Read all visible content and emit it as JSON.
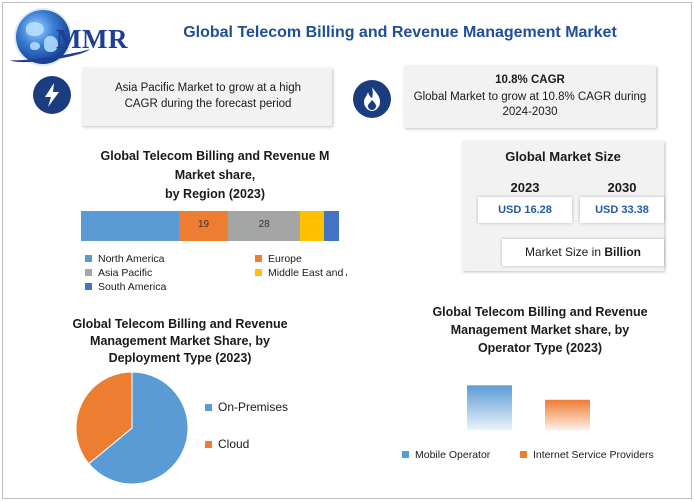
{
  "brand": {
    "logo_text": "MMR"
  },
  "title": "Global Telecom Billing and Revenue Management Market",
  "highlights": [
    {
      "icon": "lightning-icon",
      "heading": "",
      "text": "Asia Pacific Market to grow at a high CAGR during the forecast period"
    },
    {
      "icon": "flame-icon",
      "heading": "10.8% CAGR",
      "text": "Global Market to grow at 10.8% CAGR during 2024-2030"
    }
  ],
  "market_size": {
    "title": "Global Market Size",
    "year_2023": "2023",
    "year_2030": "2030",
    "value_2023": "USD 16.28",
    "value_2030": "USD 33.38",
    "note_prefix": "Market Size in ",
    "note_unit": "Billion"
  },
  "colors": {
    "north_america": "#5b9bd5",
    "europe": "#ed7d31",
    "asia_pacific": "#a5a5a5",
    "middle_east": "#ffc000",
    "south_america": "#4472c4",
    "accent": "#1f4e99"
  },
  "chart_data": [
    {
      "type": "bar",
      "orientation": "horizontal-stacked",
      "title": "Global Telecom Billing and Revenue Market share, by Region (2023)",
      "title_lines": [
        "Global Telecom Billing and Revenue M",
        "Market share,",
        "by Region (2023)"
      ],
      "series": [
        {
          "name": "North America",
          "value": 38,
          "label": ""
        },
        {
          "name": "Europe",
          "value": 19,
          "label": "19"
        },
        {
          "name": "Asia Pacific",
          "value": 28,
          "label": "28"
        },
        {
          "name": "Middle East and Africa",
          "value": 9,
          "label": ""
        },
        {
          "name": "South America",
          "value": 6,
          "label": ""
        }
      ],
      "legend_labels": [
        "North America",
        "Europe",
        "Asia Pacific",
        "Middle East and Africa",
        "South America"
      ],
      "legend": "bottom"
    },
    {
      "type": "pie",
      "title": "Global Telecom Billing and Revenue Management Market Share, by Deployment Type (2023)",
      "title_lines": [
        "Global Telecom Billing and Revenue",
        "Management Market Share, by",
        "Deployment Type (2023)"
      ],
      "categories": [
        "On-Premises",
        "Cloud"
      ],
      "values": [
        64,
        36
      ],
      "legend": "right"
    },
    {
      "type": "bar",
      "title": "Global Telecom Billing and Revenue Management Market share, by Operator Type (2023)",
      "title_lines": [
        "Global Telecom Billing and Revenue",
        "Management Market share, by",
        "Operator Type (2023)"
      ],
      "categories": [
        "Mobile Operator",
        "Internet Service Providers"
      ],
      "values": [
        62,
        42
      ],
      "ylim": [
        0,
        100
      ],
      "legend": "bottom"
    }
  ]
}
